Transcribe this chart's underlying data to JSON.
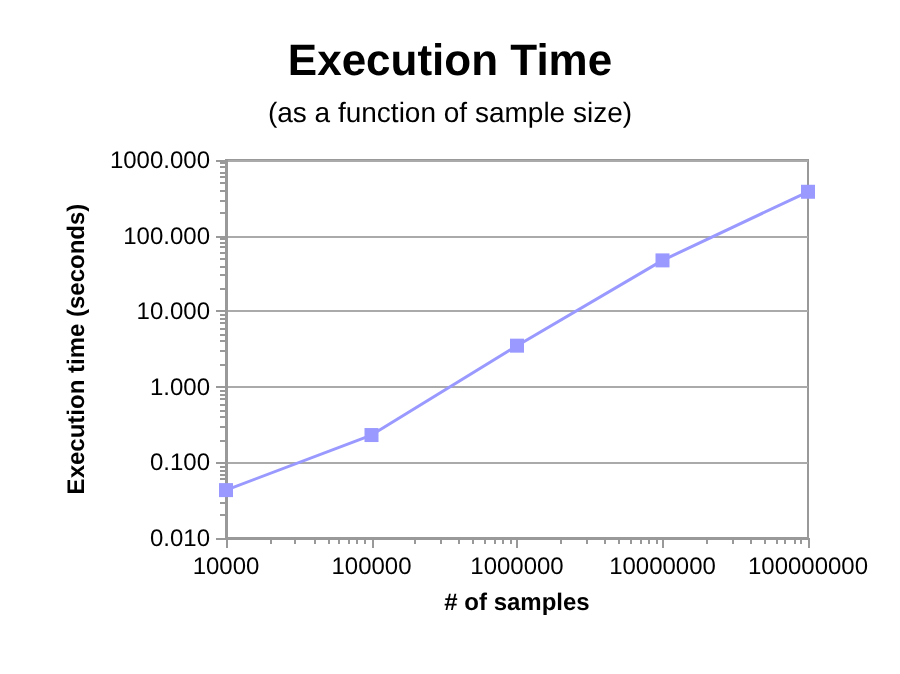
{
  "chart_data": {
    "type": "line",
    "title": "Execution Time",
    "subtitle": "(as a function of sample size)",
    "xlabel": "# of samples",
    "ylabel": "Execution time (seconds)",
    "x": [
      10000,
      100000,
      1000000,
      10000000,
      100000000
    ],
    "series": [
      {
        "color": "#9999ff",
        "values": [
          0.043,
          0.23,
          3.5,
          47,
          380
        ]
      }
    ],
    "log": "xy",
    "xlim": [
      10000,
      100000000
    ],
    "xticks": [
      10000,
      100000,
      1000000,
      10000000,
      100000000
    ],
    "ylim": [
      0.01,
      1000
    ],
    "yticks": [
      {
        "value": 0.01,
        "label": "0.010"
      },
      {
        "value": 0.1,
        "label": "0.100"
      },
      {
        "value": 1,
        "label": "1.000"
      },
      {
        "value": 10,
        "label": "10.000"
      },
      {
        "value": 100,
        "label": "100.000"
      },
      {
        "value": 1000,
        "label": "1000.000"
      }
    ],
    "grid": "y",
    "marker": "square",
    "line_style": "solid"
  }
}
